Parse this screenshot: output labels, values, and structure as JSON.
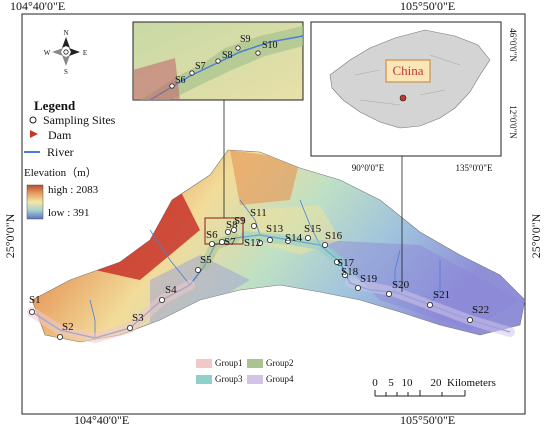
{
  "coords": {
    "top": [
      "104°40'0\"E",
      "105°50'0\"E"
    ],
    "bottom": [
      "104°40'0\"E",
      "105°50'0\"E"
    ],
    "left": "25°0'0\"N",
    "right": "25°0'0\"N"
  },
  "compass": {
    "n": "N",
    "s": "S",
    "e": "E",
    "w": "W"
  },
  "legend": {
    "title": "Legend",
    "sampling_sites": "Sampling Sites",
    "dam": "Dam",
    "river": "River",
    "elevation_title": "Elevation（m）",
    "high": "high : 2083",
    "low": "low : 391",
    "colors": {
      "site": "#ffffff",
      "dam": "#c0392b",
      "river": "#4a7fd9"
    }
  },
  "inset_map": {
    "label": "China",
    "lat_labels": [
      "46°0'0\"N",
      "12°0'0\"N"
    ],
    "lon_labels": [
      "90°0'0\"E",
      "135°0'0\"E"
    ]
  },
  "zoom_inset": {
    "sites": [
      "S6",
      "S7",
      "S8",
      "S9",
      "S10"
    ]
  },
  "sites": [
    "S1",
    "S2",
    "S3",
    "S4",
    "S5",
    "S6",
    "S7",
    "S8",
    "S9",
    "S11",
    "S12",
    "S13",
    "S14",
    "S15",
    "S16",
    "S17",
    "S18",
    "S19",
    "S20",
    "S21",
    "S22"
  ],
  "groups": [
    {
      "name": "Group1",
      "color": "#f1c8c8"
    },
    {
      "name": "Group2",
      "color": "#a9c48f"
    },
    {
      "name": "Group3",
      "color": "#8fd0c8"
    },
    {
      "name": "Group4",
      "color": "#d2c3e8"
    }
  ],
  "scale_bar": {
    "ticks": [
      "0",
      "5",
      "10",
      "20"
    ],
    "unit": "Kilometers"
  }
}
